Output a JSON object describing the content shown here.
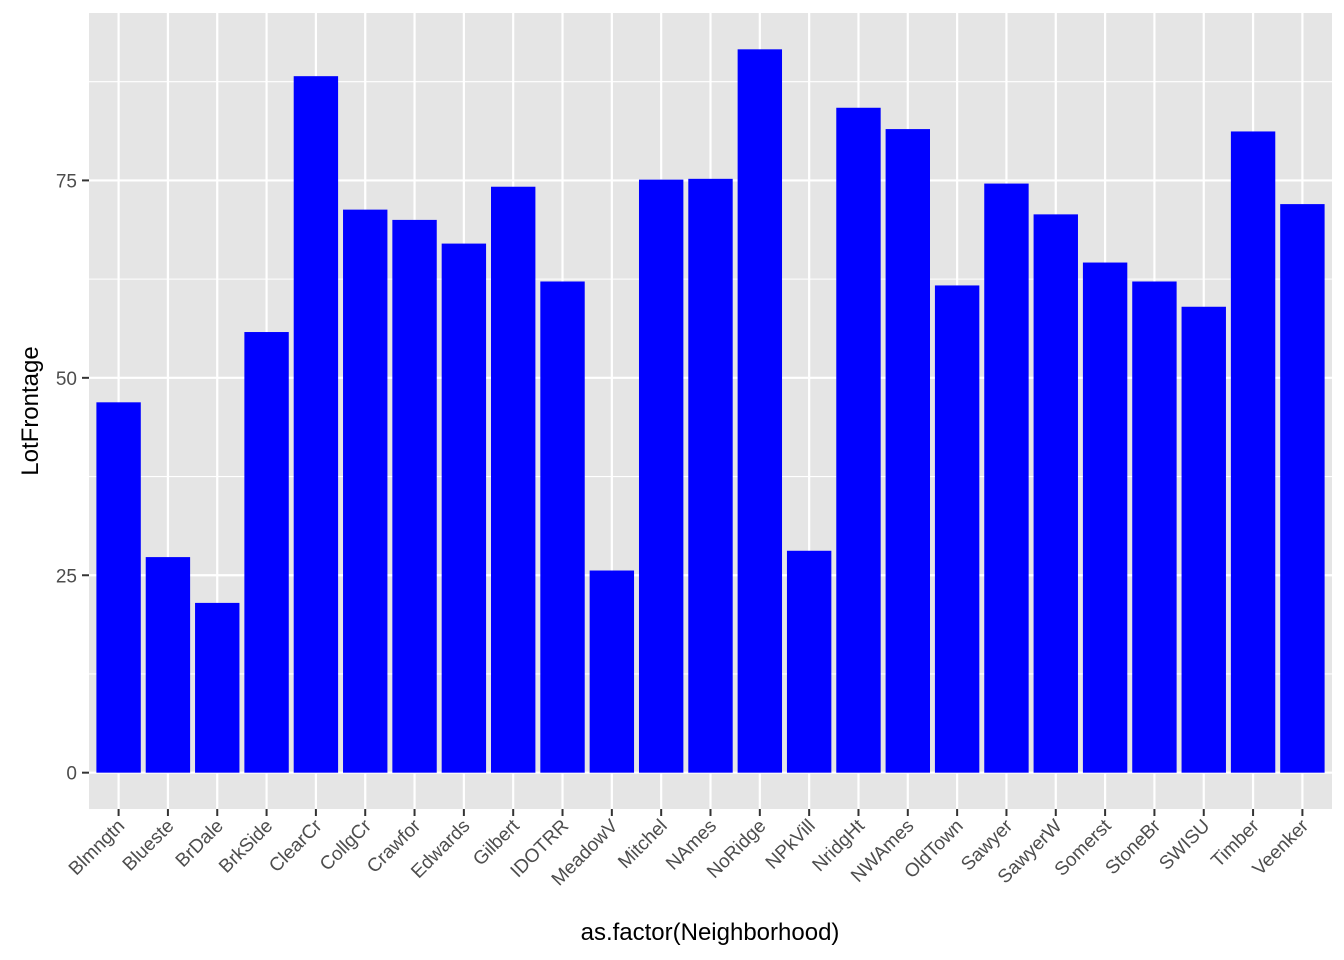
{
  "chart_data": {
    "type": "bar",
    "xlabel": "as.factor(Neighborhood)",
    "ylabel": "LotFrontage",
    "categories": [
      "Blmngtn",
      "Blueste",
      "BrDale",
      "BrkSide",
      "ClearCr",
      "CollgCr",
      "Crawfor",
      "Edwards",
      "Gilbert",
      "IDOTRR",
      "MeadowV",
      "Mitchel",
      "NAmes",
      "NoRidge",
      "NPkVill",
      "NridgHt",
      "NWAmes",
      "OldTown",
      "Sawyer",
      "SawyerW",
      "Somerst",
      "StoneBr",
      "SWISU",
      "Timber",
      "Veenker"
    ],
    "values": [
      46.9,
      27.3,
      21.5,
      55.8,
      88.2,
      71.3,
      70.0,
      67.0,
      74.2,
      62.2,
      25.6,
      75.1,
      75.2,
      91.6,
      28.1,
      84.2,
      81.5,
      61.7,
      74.6,
      70.7,
      64.6,
      62.2,
      59.0,
      81.2,
      72.0
    ],
    "yticks": [
      0,
      25,
      50,
      75
    ],
    "ylim": [
      -4.6,
      96.2
    ],
    "grid": true,
    "colors": {
      "bar": "#0000ff",
      "panel": "#e5e5e5",
      "grid": "#ffffff"
    }
  }
}
